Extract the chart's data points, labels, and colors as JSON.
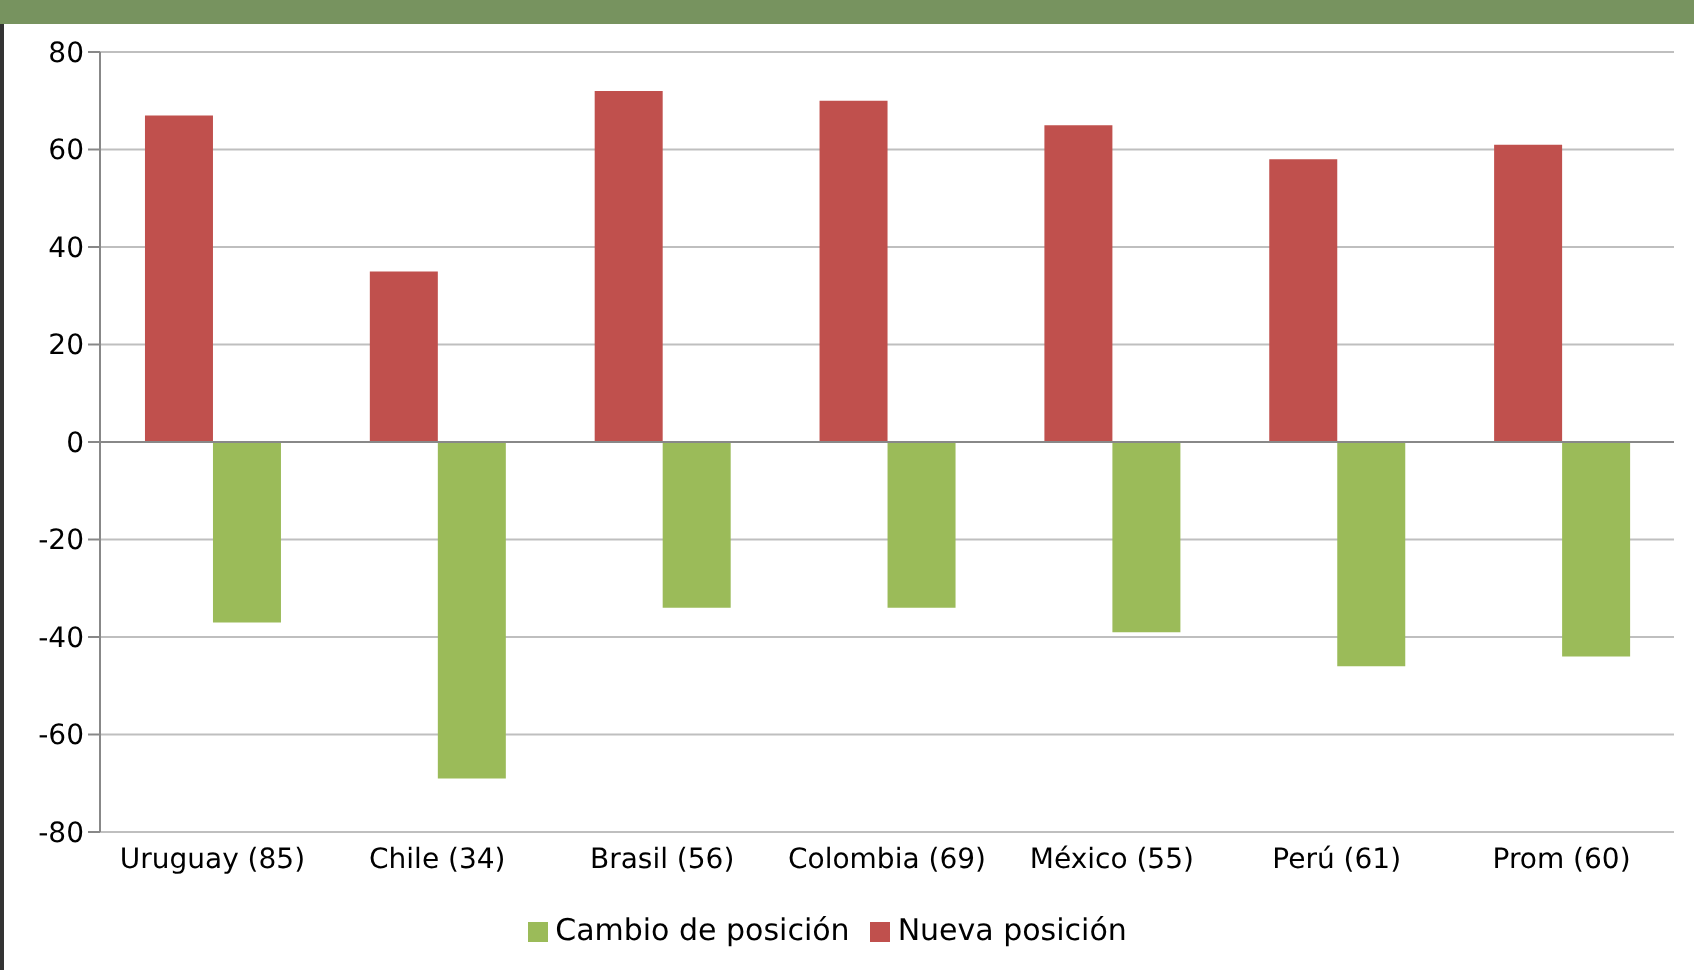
{
  "chart_data": {
    "type": "bar",
    "categories": [
      "Uruguay (85)",
      "Chile (34)",
      "Brasil (56)",
      "Colombia (69)",
      "México (55)",
      "Perú (61)",
      "Prom (60)"
    ],
    "series": [
      {
        "name": "Nueva posición",
        "color": "#c0504d",
        "values": [
          67,
          35,
          72,
          70,
          65,
          58,
          61
        ]
      },
      {
        "name": "Cambio de posición",
        "color": "#9bbb59",
        "values": [
          -37,
          -69,
          -34,
          -34,
          -39,
          -46,
          -44
        ]
      }
    ],
    "ylim": [
      -80,
      80
    ],
    "yticks": [
      -80,
      -60,
      -40,
      -20,
      0,
      20,
      40,
      60,
      80
    ],
    "grid": "y",
    "legend": "bottom"
  }
}
